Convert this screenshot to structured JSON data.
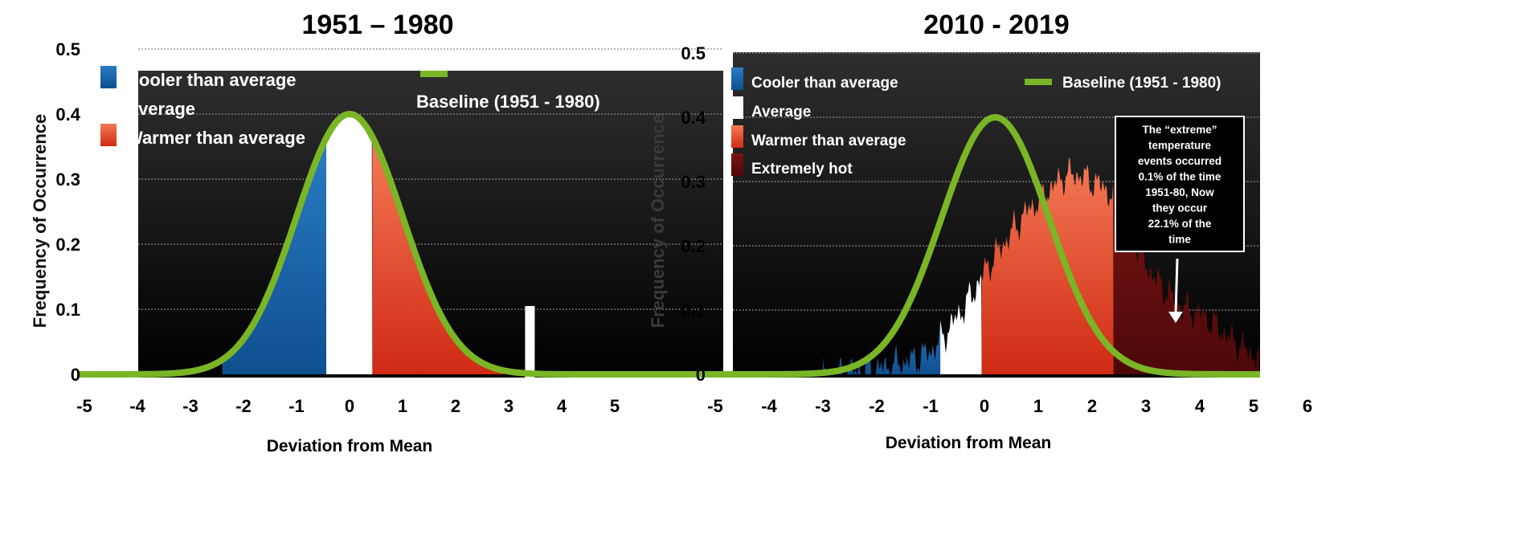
{
  "chart_data": [
    {
      "type": "area",
      "title": "1951 – 1980",
      "xlabel": "Deviation from Mean",
      "ylabel": "Frequency of Occurrence",
      "xlim": [
        -5,
        5.8
      ],
      "ylim": [
        0,
        0.5
      ],
      "x_ticks": [
        "-5",
        "-4",
        "-3",
        "-2",
        "-1",
        "0",
        "1",
        "2",
        "3",
        "4",
        "5"
      ],
      "y_ticks": [
        "0",
        "0.1",
        "0.2",
        "0.3",
        "0.4",
        "0.5"
      ],
      "grid": true,
      "legend": [
        {
          "label": "Cooler than average",
          "color": "#1f6fb4"
        },
        {
          "label": "Average",
          "color": "#ffffff"
        },
        {
          "label": "Warmer than average",
          "color": "#e8583a"
        }
      ],
      "baseline_label": "Baseline (1951 - 1980)",
      "baseline": {
        "mean": 0,
        "sd": 1,
        "peak": 0.4,
        "x_range": [
          -5.1,
          7
        ],
        "color": "#7ab526"
      },
      "segments": [
        {
          "name": "Cooler than average",
          "from": -2.4,
          "to": -0.44,
          "color": "#1f6fb4"
        },
        {
          "name": "Average",
          "from": -0.44,
          "to": 0.43,
          "color": "#ffffff"
        },
        {
          "name": "Warmer than average",
          "from": 0.43,
          "to": 2.9,
          "color": "#e8583a"
        }
      ],
      "distribution": {
        "mean": 0,
        "sd": 1,
        "peak": 0.395
      },
      "marker": {
        "x": 3.4,
        "y": 0.105
      }
    },
    {
      "type": "area",
      "title": "2010 - 2019",
      "xlabel": "Deviation from Mean",
      "ylabel": "Frequency of Occurrence",
      "xlim": [
        -5,
        5.1
      ],
      "ylim": [
        0,
        0.5
      ],
      "x_ticks": [
        "-5",
        "-4",
        "-3",
        "-2",
        "-1",
        "0",
        "1",
        "2",
        "3",
        "4",
        "5",
        "6"
      ],
      "y_ticks": [
        "0",
        "0.1",
        "0.2",
        "0.3",
        "0.4",
        "0.5"
      ],
      "grid": true,
      "legend": [
        {
          "label": "Cooler than average",
          "color": "#1f6fb4"
        },
        {
          "label": "Average",
          "color": "#ffffff"
        },
        {
          "label": "Warmer than average",
          "color": "#e8583a"
        },
        {
          "label": "Extremely hot",
          "color": "#6a0d0d"
        }
      ],
      "baseline_label": "Baseline (1951 - 1980)",
      "baseline": {
        "mean": 0.2,
        "sd": 1,
        "peak": 0.4,
        "x_range": [
          -5,
          6
        ],
        "color": "#7ab526"
      },
      "segments": [
        {
          "name": "Cooler than average",
          "from": -3.0,
          "to": -0.82,
          "color": "#1f6fb4"
        },
        {
          "name": "Average",
          "from": -0.82,
          "to": -0.05,
          "color": "#ffffff"
        },
        {
          "name": "Warmer than average",
          "from": -0.05,
          "to": 2.4,
          "color": "#e8583a"
        },
        {
          "name": "Extremely hot",
          "from": 2.4,
          "to": 5.1,
          "color": "#6a0d0d"
        }
      ],
      "distribution": {
        "x": [
          -3,
          -2.5,
          -2,
          -1.75,
          -1.5,
          -1.25,
          -1,
          -0.75,
          -0.5,
          -0.25,
          0,
          0.25,
          0.5,
          0.75,
          1,
          1.25,
          1.5,
          1.75,
          2,
          2.25,
          2.5,
          2.75,
          3,
          3.25,
          3.5,
          3.75,
          4,
          4.25,
          4.5,
          4.75,
          5,
          5.1
        ],
        "y": [
          0,
          0.003,
          0.008,
          0.012,
          0.018,
          0.025,
          0.035,
          0.06,
          0.09,
          0.12,
          0.16,
          0.19,
          0.22,
          0.25,
          0.27,
          0.29,
          0.31,
          0.31,
          0.3,
          0.29,
          0.26,
          0.22,
          0.17,
          0.14,
          0.12,
          0.1,
          0.095,
          0.08,
          0.06,
          0.045,
          0.03,
          0.025
        ]
      },
      "annotation": [
        "The “extreme”",
        "temperature",
        "events occurred",
        "0.1% of the time",
        "1951-80, Now",
        "they occur",
        "22.1% of the",
        "time"
      ]
    }
  ]
}
